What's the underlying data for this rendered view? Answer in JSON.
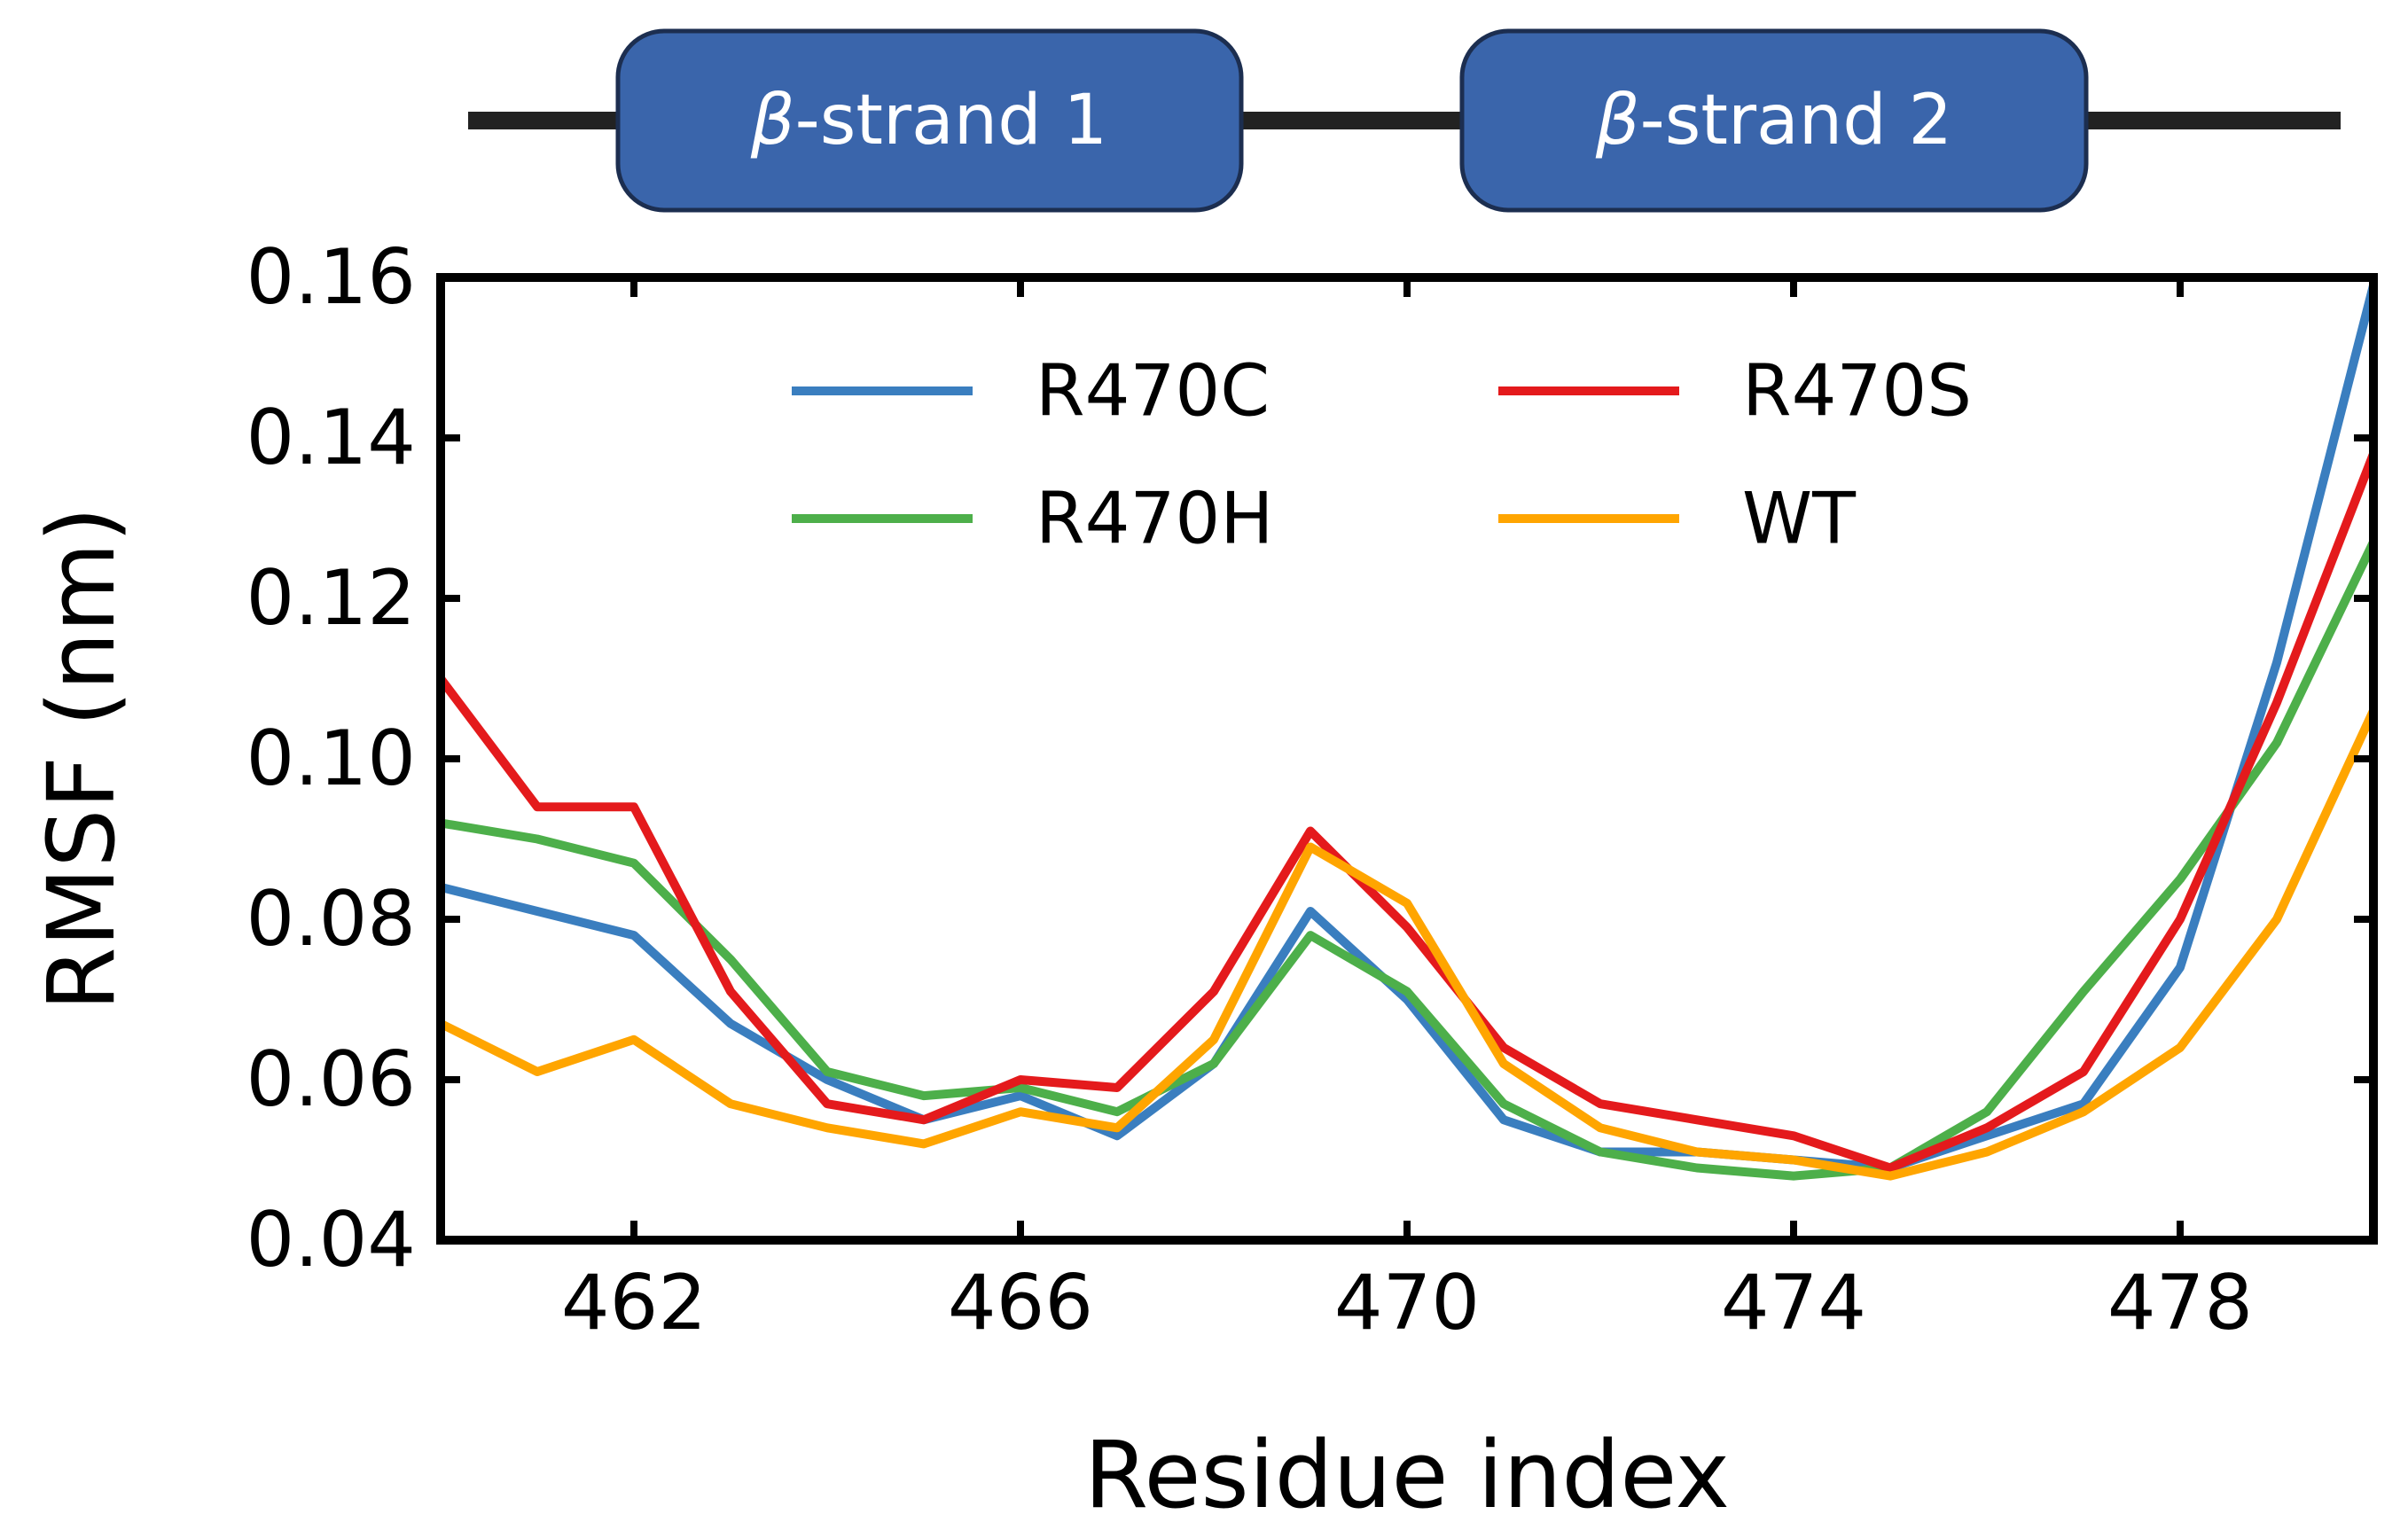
{
  "chart_data": {
    "type": "line",
    "title": "",
    "xlabel": "Residue index",
    "ylabel": "RMSF (nm)",
    "xlim": [
      460,
      480
    ],
    "ylim": [
      0.04,
      0.16
    ],
    "xticks": [
      462,
      466,
      470,
      474,
      478
    ],
    "xtick_labels": [
      "462",
      "466",
      "470",
      "474",
      "478"
    ],
    "yticks": [
      0.04,
      0.06,
      0.08,
      0.1,
      0.12,
      0.14,
      0.16
    ],
    "ytick_labels": [
      "0.04",
      "0.06",
      "0.08",
      "0.10",
      "0.12",
      "0.14",
      "0.16"
    ],
    "grid": false,
    "legend_position": "top-center",
    "x": [
      460,
      461,
      462,
      463,
      464,
      465,
      466,
      467,
      468,
      469,
      470,
      471,
      472,
      473,
      474,
      475,
      476,
      477,
      478,
      479,
      480
    ],
    "series": [
      {
        "name": "R470C",
        "color": "#3a7ebf",
        "values": [
          0.084,
          0.081,
          0.078,
          0.067,
          0.06,
          0.055,
          0.058,
          0.053,
          0.062,
          0.081,
          0.07,
          0.055,
          0.051,
          0.051,
          0.05,
          0.049,
          0.053,
          0.057,
          0.074,
          0.112,
          0.159
        ]
      },
      {
        "name": "R470H",
        "color": "#4daf4a",
        "values": [
          0.092,
          0.09,
          0.087,
          0.075,
          0.061,
          0.058,
          0.059,
          0.056,
          0.062,
          0.078,
          0.071,
          0.057,
          0.051,
          0.049,
          0.048,
          0.049,
          0.056,
          0.071,
          0.085,
          0.102,
          0.127
        ]
      },
      {
        "name": "R470S",
        "color": "#e41a1c",
        "values": [
          0.11,
          0.094,
          0.094,
          0.071,
          0.057,
          0.055,
          0.06,
          0.059,
          0.071,
          0.091,
          0.079,
          0.064,
          0.057,
          0.055,
          0.053,
          0.049,
          0.054,
          0.061,
          0.08,
          0.107,
          0.138
        ]
      },
      {
        "name": "WT",
        "color": "#ffa500",
        "values": [
          0.067,
          0.061,
          0.065,
          0.057,
          0.054,
          0.052,
          0.056,
          0.054,
          0.065,
          0.089,
          0.082,
          0.062,
          0.054,
          0.051,
          0.05,
          0.048,
          0.051,
          0.056,
          0.064,
          0.08,
          0.106
        ]
      }
    ],
    "secondary_structure": {
      "line_color": "#222222",
      "box_color": "#3a65ab",
      "box_border_color": "#1c2e50",
      "strands": [
        {
          "label_symbol": "β",
          "label_text": "-strand 1"
        },
        {
          "label_symbol": "β",
          "label_text": "-strand 2"
        }
      ]
    }
  }
}
